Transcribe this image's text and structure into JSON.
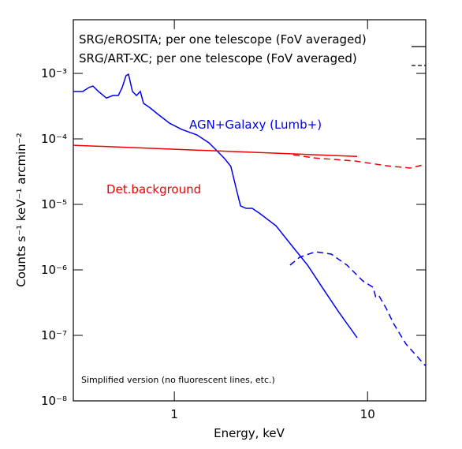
{
  "chart_data": {
    "type": "line",
    "xlabel": "Energy, keV",
    "ylabel": "Counts s⁻¹ keV⁻¹ arcmin⁻²",
    "xscale": "log",
    "yscale": "log",
    "xlim": [
      0.3,
      20
    ],
    "ylim": [
      1e-08,
      0.0066
    ],
    "xticks": [
      1,
      10
    ],
    "yticks": [
      {
        "value": 1e-08,
        "label": "10⁻⁸"
      },
      {
        "value": 1e-07,
        "label": "10⁻⁷"
      },
      {
        "value": 1e-06,
        "label": "10⁻⁶"
      },
      {
        "value": 1e-05,
        "label": "10⁻⁵"
      },
      {
        "value": 0.0001,
        "label": "10⁻⁴"
      },
      {
        "value": 0.001,
        "label": "10⁻³"
      }
    ],
    "legend": [
      {
        "label": "SRG/eROSITA; per one telescope (FoV averaged)",
        "style": "solid"
      },
      {
        "label": "SRG/ART-XC; per one telescope (FoV averaged)",
        "style": "dashed"
      }
    ],
    "annotations": [
      {
        "text": "AGN+Galaxy (Lumb+)",
        "color": "#0000ee"
      },
      {
        "text": "Det.background",
        "color": "#ee0000"
      },
      {
        "text": "Simplified version (no fluorescent lines, etc.)",
        "color": "#000000"
      }
    ],
    "series": [
      {
        "color": "#0000ee",
        "style": "solid",
        "x": [
          0.3,
          0.336,
          0.362,
          0.379,
          0.405,
          0.445,
          0.48,
          0.513,
          0.537,
          0.562,
          0.579,
          0.607,
          0.637,
          0.667,
          0.692,
          0.746,
          0.82,
          0.944,
          1.09,
          1.31,
          1.51,
          1.66,
          1.82,
          1.96,
          2.1,
          2.2,
          2.35,
          2.53,
          2.78,
          3.36,
          4.05,
          4.89,
          5.9,
          7.12,
          8.83
        ],
        "values": [
          0.00053,
          0.00053,
          0.00061,
          0.00064,
          0.00053,
          0.00042,
          0.00046,
          0.00046,
          0.00061,
          0.00092,
          0.00097,
          0.00053,
          0.00046,
          0.00053,
          0.00035,
          0.0003,
          0.00024,
          0.000174,
          0.00014,
          0.000115,
          8.7e-05,
          6.6e-05,
          5e-05,
          3.8e-05,
          1.65e-05,
          9.5e-06,
          8.7e-06,
          8.7e-06,
          7.2e-06,
          4.7e-06,
          2.36e-06,
          1.18e-06,
          5.1e-07,
          2.23e-07,
          9.2e-08
        ]
      },
      {
        "color": "#ee0000",
        "style": "solid",
        "x": [
          0.3,
          8.83
        ],
        "values": [
          8e-05,
          5.4e-05
        ]
      },
      {
        "color": "#ee0000",
        "style": "dashed",
        "x": [
          4.13,
          5.37,
          8.59,
          12.5,
          16.6,
          20
        ],
        "values": [
          5.7e-05,
          5.1e-05,
          4.6e-05,
          3.9e-05,
          3.58e-05,
          4.1e-05
        ]
      },
      {
        "color": "#0000ee",
        "style": "dashed",
        "x": [
          3.97,
          4.45,
          5.37,
          6.49,
          7.82,
          9.44,
          10.7,
          11.0,
          11.4,
          12.5,
          13.7,
          15.8,
          20
        ],
        "values": [
          1.18e-06,
          1.56e-06,
          1.89e-06,
          1.74e-06,
          1.18e-06,
          6.8e-07,
          5.4e-07,
          3.9e-07,
          4.1e-07,
          2.57e-07,
          1.48e-07,
          7.4e-08,
          3.4e-08
        ]
      }
    ]
  }
}
